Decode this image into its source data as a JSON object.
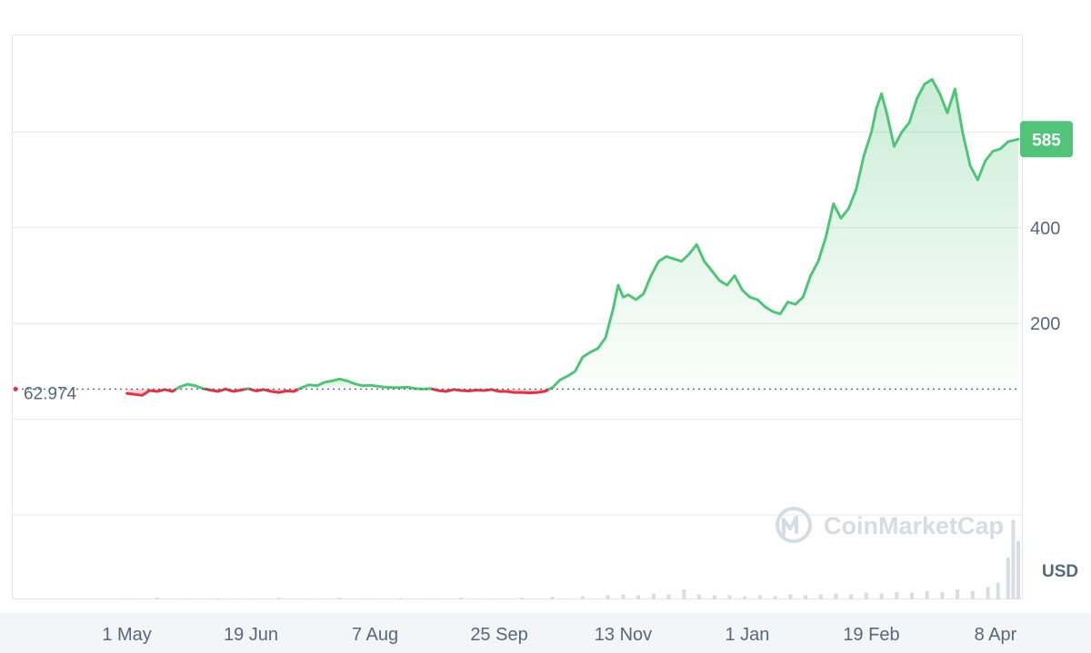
{
  "chart_data": {
    "type": "area",
    "currency": "USD",
    "watermark": "CoinMarketCap",
    "reference_value": 62.974,
    "reference_label": "62.974",
    "current_value": 585,
    "current_label": "585",
    "y_ticks": [
      200,
      400
    ],
    "y_tick_labels": [
      "200",
      "400"
    ],
    "x_tick_labels": [
      "1 May",
      "19 Jun",
      "7 Aug",
      "25 Sep",
      "13 Nov",
      "1 Jan",
      "19 Feb",
      "8 Apr"
    ],
    "x_range_days": [
      -16,
      352
    ],
    "y_range": [
      -200,
      800
    ],
    "series": [
      {
        "points": [
          [
            0,
            54
          ],
          [
            3,
            52
          ],
          [
            6,
            50
          ],
          [
            9,
            60
          ],
          [
            12,
            58
          ],
          [
            15,
            62
          ],
          [
            18,
            58
          ],
          [
            21,
            68
          ],
          [
            24,
            73
          ],
          [
            27,
            70
          ],
          [
            30,
            64
          ],
          [
            33,
            61
          ],
          [
            36,
            58
          ],
          [
            39,
            63
          ],
          [
            42,
            58
          ],
          [
            45,
            61
          ],
          [
            48,
            64
          ],
          [
            51,
            59
          ],
          [
            54,
            62
          ],
          [
            57,
            58
          ],
          [
            60,
            56
          ],
          [
            63,
            59
          ],
          [
            66,
            58
          ],
          [
            69,
            66
          ],
          [
            72,
            72
          ],
          [
            75,
            70
          ],
          [
            78,
            77
          ],
          [
            81,
            80
          ],
          [
            84,
            84
          ],
          [
            87,
            80
          ],
          [
            90,
            74
          ],
          [
            93,
            70
          ],
          [
            96,
            71
          ],
          [
            99,
            69
          ],
          [
            102,
            67
          ],
          [
            105,
            66
          ],
          [
            108,
            66
          ],
          [
            111,
            67
          ],
          [
            114,
            64
          ],
          [
            117,
            63
          ],
          [
            120,
            64
          ],
          [
            123,
            60
          ],
          [
            126,
            58
          ],
          [
            129,
            62
          ],
          [
            132,
            60
          ],
          [
            135,
            59
          ],
          [
            138,
            61
          ],
          [
            141,
            60
          ],
          [
            144,
            62
          ],
          [
            147,
            58
          ],
          [
            150,
            58
          ],
          [
            153,
            56
          ],
          [
            156,
            56
          ],
          [
            159,
            55
          ],
          [
            162,
            56
          ],
          [
            165,
            58
          ],
          [
            168,
            66
          ],
          [
            171,
            82
          ],
          [
            174,
            90
          ],
          [
            177,
            100
          ],
          [
            180,
            130
          ],
          [
            183,
            140
          ],
          [
            186,
            148
          ],
          [
            189,
            170
          ],
          [
            192,
            230
          ],
          [
            194,
            280
          ],
          [
            196,
            255
          ],
          [
            198,
            260
          ],
          [
            201,
            250
          ],
          [
            204,
            262
          ],
          [
            207,
            300
          ],
          [
            210,
            330
          ],
          [
            213,
            340
          ],
          [
            216,
            335
          ],
          [
            219,
            330
          ],
          [
            222,
            345
          ],
          [
            225,
            365
          ],
          [
            228,
            330
          ],
          [
            231,
            310
          ],
          [
            234,
            290
          ],
          [
            237,
            280
          ],
          [
            240,
            300
          ],
          [
            243,
            270
          ],
          [
            246,
            255
          ],
          [
            249,
            250
          ],
          [
            252,
            235
          ],
          [
            255,
            225
          ],
          [
            258,
            220
          ],
          [
            261,
            245
          ],
          [
            264,
            240
          ],
          [
            267,
            255
          ],
          [
            270,
            300
          ],
          [
            273,
            330
          ],
          [
            276,
            380
          ],
          [
            279,
            450
          ],
          [
            282,
            420
          ],
          [
            285,
            440
          ],
          [
            288,
            480
          ],
          [
            291,
            550
          ],
          [
            294,
            600
          ],
          [
            296,
            650
          ],
          [
            298,
            680
          ],
          [
            300,
            640
          ],
          [
            303,
            570
          ],
          [
            306,
            600
          ],
          [
            309,
            620
          ],
          [
            312,
            670
          ],
          [
            315,
            700
          ],
          [
            318,
            710
          ],
          [
            321,
            680
          ],
          [
            324,
            640
          ],
          [
            327,
            690
          ],
          [
            330,
            600
          ],
          [
            333,
            530
          ],
          [
            336,
            500
          ],
          [
            339,
            540
          ],
          [
            342,
            560
          ],
          [
            345,
            565
          ],
          [
            348,
            580
          ],
          [
            352,
            585
          ]
        ]
      }
    ],
    "volume": [
      [
        0,
        0.01
      ],
      [
        12,
        0.02
      ],
      [
        24,
        0.01
      ],
      [
        36,
        0.015
      ],
      [
        48,
        0.01
      ],
      [
        60,
        0.02
      ],
      [
        72,
        0.01
      ],
      [
        84,
        0.02
      ],
      [
        96,
        0.01
      ],
      [
        108,
        0.015
      ],
      [
        120,
        0.01
      ],
      [
        132,
        0.02
      ],
      [
        144,
        0.01
      ],
      [
        156,
        0.02
      ],
      [
        168,
        0.03
      ],
      [
        180,
        0.04
      ],
      [
        190,
        0.05
      ],
      [
        196,
        0.06
      ],
      [
        202,
        0.05
      ],
      [
        208,
        0.07
      ],
      [
        214,
        0.06
      ],
      [
        220,
        0.12
      ],
      [
        226,
        0.06
      ],
      [
        232,
        0.05
      ],
      [
        238,
        0.05
      ],
      [
        244,
        0.04
      ],
      [
        250,
        0.05
      ],
      [
        256,
        0.04
      ],
      [
        262,
        0.06
      ],
      [
        268,
        0.05
      ],
      [
        274,
        0.06
      ],
      [
        280,
        0.07
      ],
      [
        286,
        0.06
      ],
      [
        292,
        0.08
      ],
      [
        298,
        0.07
      ],
      [
        304,
        0.09
      ],
      [
        310,
        0.08
      ],
      [
        316,
        0.1
      ],
      [
        322,
        0.09
      ],
      [
        328,
        0.12
      ],
      [
        334,
        0.1
      ],
      [
        340,
        0.15
      ],
      [
        344,
        0.2
      ],
      [
        348,
        0.5
      ],
      [
        350,
        0.95
      ],
      [
        352,
        0.7
      ]
    ],
    "colors": {
      "up": "#52c47a",
      "down": "#dc3545",
      "up_fill": "#d6f0df",
      "down_fill": "#f6c7cc",
      "badge": "#52c47a",
      "grid": "#e6e9ee",
      "volume": "#d8dde5"
    },
    "grid": true
  }
}
